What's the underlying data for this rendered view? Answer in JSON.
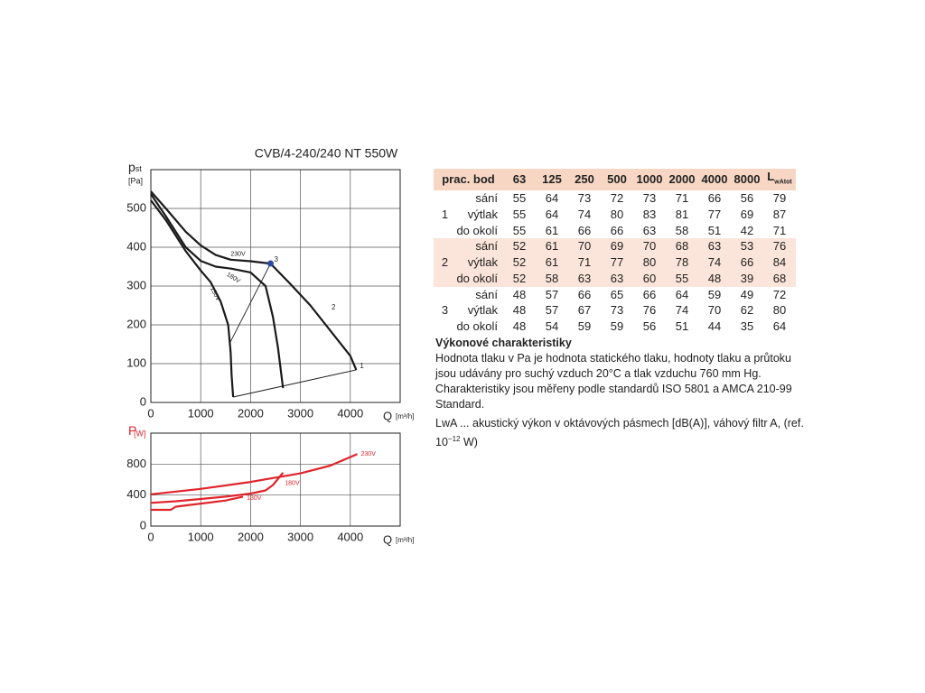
{
  "chart_data": [
    {
      "type": "line",
      "title": "CVB/4-240/240 NT 550W",
      "y_label": "p",
      "y_label_sub": "st",
      "y_unit": "[Pa]",
      "x_label": "Q",
      "x_unit": "[m³/h]",
      "xlim": [
        0,
        5000
      ],
      "xticks": [
        0,
        1000,
        2000,
        3000,
        4000
      ],
      "ylim": [
        0,
        600
      ],
      "yticks": [
        0,
        100,
        200,
        300,
        400,
        500
      ],
      "grid": true,
      "series": [
        {
          "name": "230V",
          "color": "#1a1a1a",
          "x": [
            0,
            300,
            700,
            1000,
            1300,
            1600,
            2000,
            2400,
            2800,
            3200,
            3600,
            4000,
            4120
          ],
          "values": [
            544,
            500,
            440,
            405,
            380,
            368,
            364,
            358,
            305,
            250,
            185,
            120,
            84
          ]
        },
        {
          "name": "180V",
          "color": "#1a1a1a",
          "x": [
            0,
            300,
            700,
            1000,
            1300,
            1600,
            2000,
            2300,
            2450,
            2550,
            2650
          ],
          "values": [
            537,
            480,
            400,
            365,
            350,
            345,
            335,
            300,
            220,
            140,
            37
          ]
        },
        {
          "name": "130V",
          "color": "#1a1a1a",
          "x": [
            0,
            300,
            700,
            1000,
            1200,
            1400,
            1550,
            1600,
            1620,
            1650
          ],
          "values": [
            521,
            470,
            390,
            340,
            310,
            260,
            200,
            130,
            70,
            14
          ]
        },
        {
          "color": "#1a1a1a",
          "x": [
            1650,
            4120
          ],
          "values": [
            14,
            84
          ]
        },
        {
          "color": "#1a1a1a",
          "x": [
            1590,
            2400
          ],
          "values": [
            155,
            358
          ]
        }
      ],
      "points": [
        {
          "label": "1",
          "x": 4120,
          "y": 84
        },
        {
          "label": "2",
          "x": 3550,
          "y": 235
        },
        {
          "label": "3",
          "x": 2400,
          "y": 358,
          "color": "#2b4aa0"
        }
      ]
    },
    {
      "type": "line",
      "y_label": "P",
      "y_unit": "[W]",
      "label_color": "#e0242b",
      "x_label": "Q",
      "x_unit": "[m³/h]",
      "xlim": [
        0,
        5000
      ],
      "xticks": [
        0,
        1000,
        2000,
        3000,
        4000
      ],
      "ylim": [
        0,
        1200
      ],
      "yticks": [
        0,
        400,
        800
      ],
      "grid": true,
      "series": [
        {
          "name": "230V",
          "color": "#e0242b",
          "x": [
            0,
            1000,
            2000,
            3000,
            3600,
            4140
          ],
          "values": [
            410,
            480,
            570,
            680,
            780,
            930
          ]
        },
        {
          "name": "180V",
          "color": "#e0242b",
          "x": [
            0,
            500,
            1000,
            1500,
            2000,
            2300,
            2450,
            2650
          ],
          "values": [
            300,
            320,
            350,
            380,
            420,
            460,
            530,
            690
          ]
        },
        {
          "name": "130V",
          "color": "#e0242b",
          "x": [
            0,
            400,
            500,
            1000,
            1500,
            1850
          ],
          "values": [
            210,
            210,
            250,
            290,
            330,
            380
          ]
        }
      ]
    }
  ],
  "table": {
    "header": [
      "prac. bod",
      "63",
      "125",
      "250",
      "500",
      "1000",
      "2000",
      "4000",
      "8000"
    ],
    "total_header": {
      "main": "L",
      "sub": "wAtot"
    },
    "groups": [
      {
        "point": "1",
        "rows": [
          {
            "label": "sání",
            "values": [
              55,
              64,
              73,
              72,
              73,
              71,
              66,
              56,
              79
            ]
          },
          {
            "label": "výtlak",
            "values": [
              55,
              64,
              74,
              80,
              83,
              81,
              77,
              69,
              87
            ]
          },
          {
            "label": "do okolí",
            "values": [
              55,
              61,
              66,
              66,
              63,
              58,
              51,
              42,
              71
            ]
          }
        ]
      },
      {
        "point": "2",
        "rows": [
          {
            "label": "sání",
            "values": [
              52,
              61,
              70,
              69,
              70,
              68,
              63,
              53,
              76
            ]
          },
          {
            "label": "výtlak",
            "values": [
              52,
              61,
              71,
              77,
              80,
              78,
              74,
              66,
              84
            ]
          },
          {
            "label": "do okolí",
            "values": [
              52,
              58,
              63,
              63,
              60,
              55,
              48,
              39,
              68
            ]
          }
        ]
      },
      {
        "point": "3",
        "rows": [
          {
            "label": "sání",
            "values": [
              48,
              57,
              66,
              65,
              66,
              64,
              59,
              49,
              72
            ]
          },
          {
            "label": "výtlak",
            "values": [
              48,
              57,
              67,
              73,
              76,
              74,
              70,
              62,
              80
            ]
          },
          {
            "label": "do okolí",
            "values": [
              48,
              54,
              59,
              59,
              56,
              51,
              44,
              35,
              64
            ]
          }
        ]
      }
    ]
  },
  "notes": {
    "title": "Výkonové charakteristiky",
    "paragraph": "Hodnota tlaku v Pa je hodnota statického tlaku, hodnoty tlaku a průtoku jsou udávány pro suchý vzduch 20°C a tlak vzduchu 760 mm Hg. Charakteristiky jsou měřeny podle standardů ISO 5801 a AMCA 210-99 Standard.",
    "note_parts": [
      "LwA ... akustický výkon v oktávových pásmech [dB(A)], váhový filtr A, (ref. 10",
      "−12",
      " W)"
    ]
  }
}
